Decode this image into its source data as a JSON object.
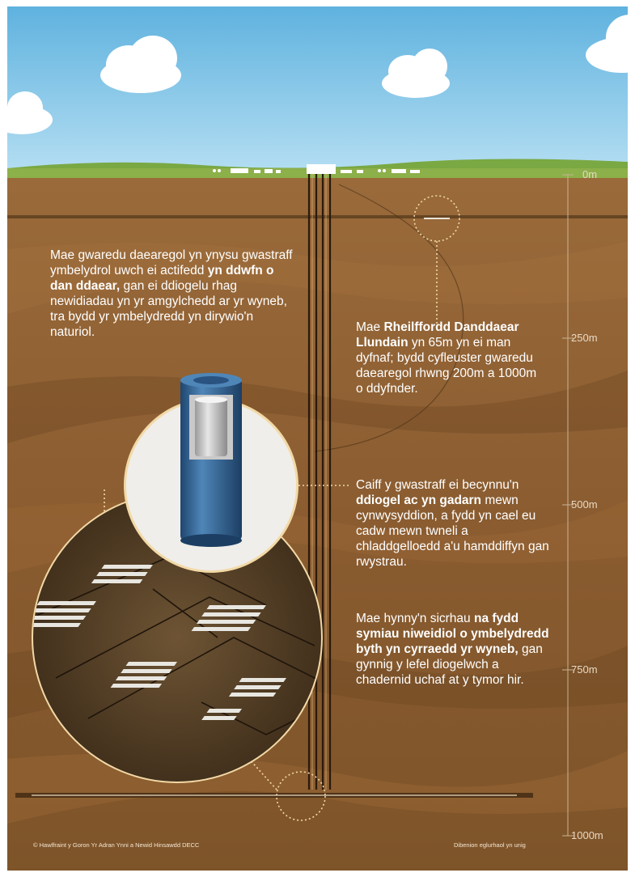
{
  "depth_scale": {
    "labels": [
      "0m",
      "250m",
      "500m",
      "750m",
      "1000m"
    ]
  },
  "paragraphs": {
    "p1": {
      "pre": "Mae gwaredu daearegol yn ynysu gwastraff ymbelydrol uwch ei actifedd ",
      "bold": "yn ddwfn o dan ddaear,",
      "post": " gan ei ddiogelu rhag newidiadau yn yr amgylchedd ar yr wyneb, tra bydd yr ymbelydredd yn dirywio'n naturiol."
    },
    "p2": {
      "pre": "Mae ",
      "bold": "Rheilffordd Danddaear Llundain",
      "post": " yn 65m yn ei man dyfnaf; bydd cyfleuster gwaredu daearegol rhwng 200m a 1000m o ddyfnder."
    },
    "p3": {
      "pre": "Caiff y gwastraff ei becynnu'n ",
      "bold": "ddiogel ac yn gadarn",
      "post": " mewn cynwysyddion, a fydd yn cael eu cadw mewn twneli a chladdgelloedd a'u hamddiffyn gan rwystrau."
    },
    "p4": {
      "pre": "Mae hynny'n sicrhau ",
      "bold": "na fydd symiau niweidiol o ymbelydredd byth yn cyrraedd yr wyneb,",
      "post": " gan gynnig y lefel diogelwch a chadernid uchaf at y tymor hir."
    }
  },
  "footer": {
    "copyright": "© Hawlfraint y Goron Yr Adran Ynni a Newid Hinsawdd DECC",
    "disclaimer": "Dibenion eglurhaol yn unig"
  },
  "colors": {
    "sky_top": "#5fb2df",
    "sky_bottom": "#a9d8ef",
    "grass": "#8cb04a",
    "earth_top": "#9a6a3a",
    "earth_bottom": "#7a4f27",
    "dotted_line": "#f2d9a6",
    "canister_blue": "#2f5f8f"
  }
}
